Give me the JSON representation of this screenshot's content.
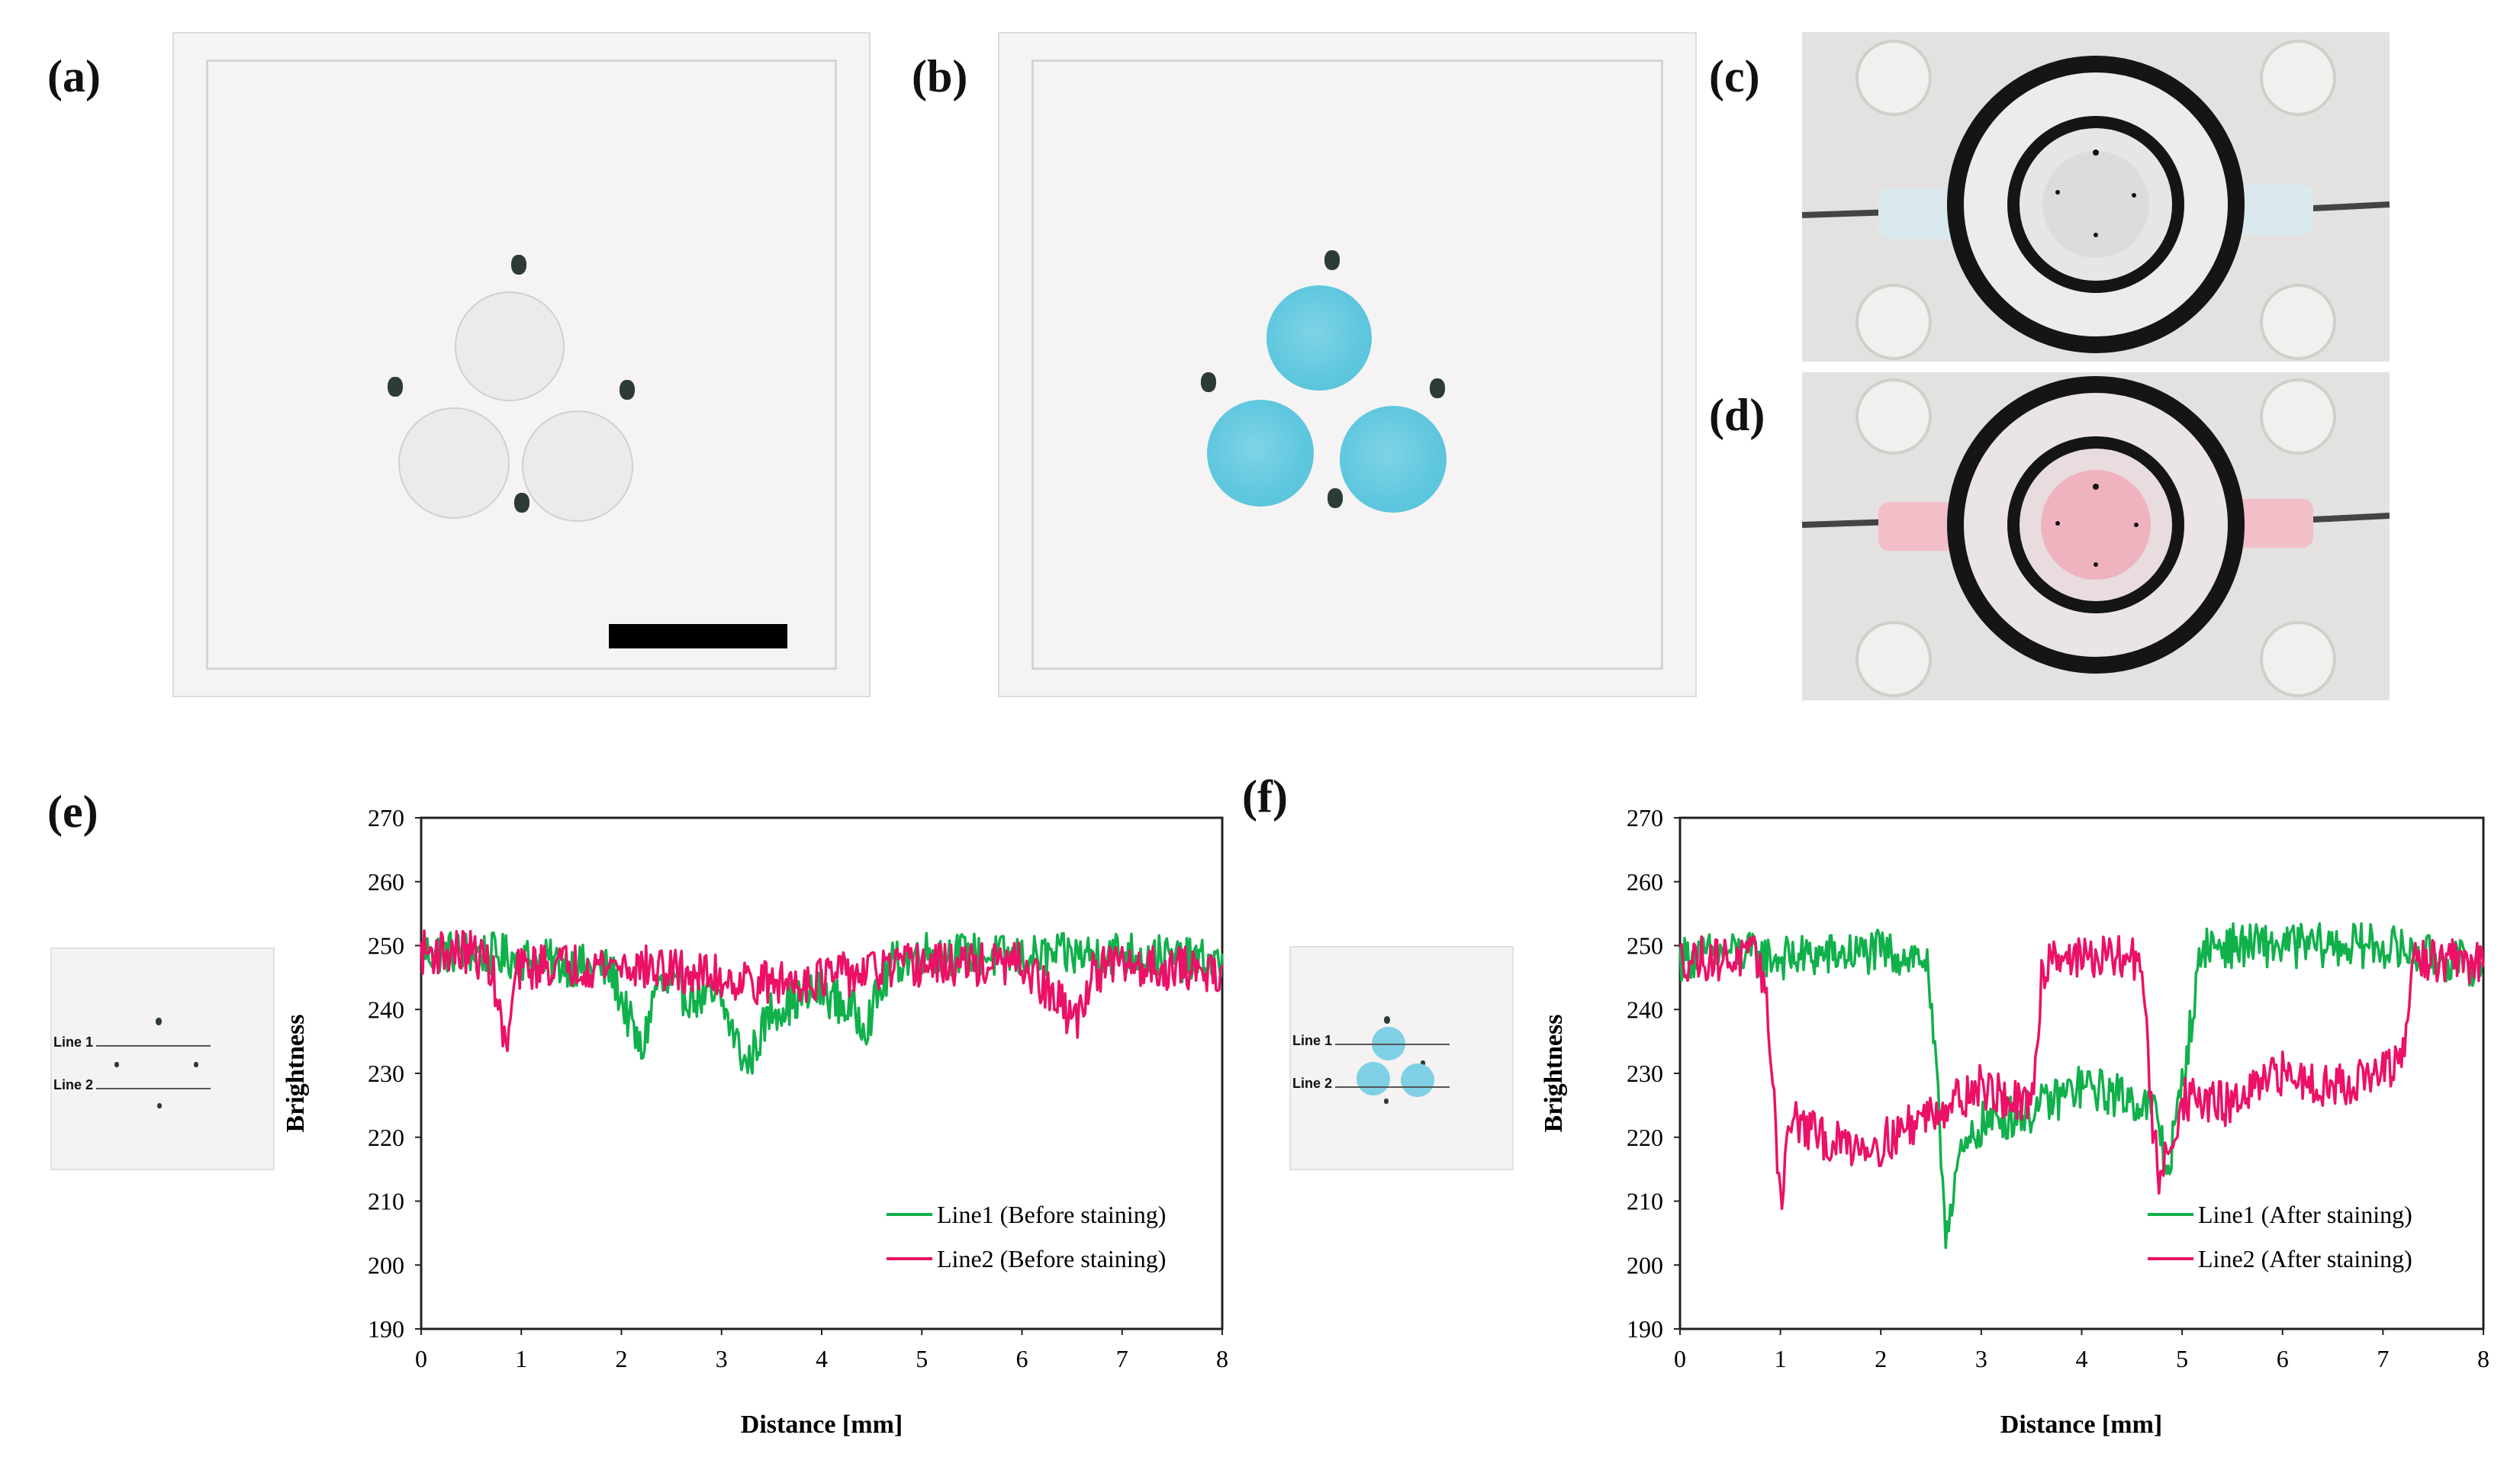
{
  "panels": {
    "a": {
      "label": "(a)"
    },
    "b": {
      "label": "(b)"
    },
    "c": {
      "label": "(c)"
    },
    "d": {
      "label": "(d)"
    },
    "e": {
      "label": "(e)"
    },
    "f": {
      "label": "(f)"
    }
  },
  "thumb_e": {
    "line1": "Line 1",
    "line2": "Line 2"
  },
  "thumb_f": {
    "line1": "Line 1",
    "line2": "Line 2"
  },
  "colors": {
    "line1": "#10b04b",
    "line2": "#ec1067",
    "stain": "#5ec7de",
    "pink": "#efb3bf"
  },
  "chart_data": [
    {
      "type": "line",
      "xlabel": "Distance [mm]",
      "ylabel": "Brightness",
      "xlim": [
        0,
        8
      ],
      "ylim": [
        190,
        270
      ],
      "xticks": [
        0,
        1,
        2,
        3,
        4,
        5,
        6,
        7,
        8
      ],
      "yticks": [
        190,
        200,
        210,
        220,
        230,
        240,
        250,
        260,
        270
      ],
      "legend_position": "bottom-right",
      "noise": 3.5,
      "series": [
        {
          "name": "Line1 (Before staining)",
          "color": "#10b04b",
          "x": [
            0,
            0.5,
            1.0,
            1.5,
            1.9,
            2.2,
            2.35,
            2.5,
            3.0,
            3.25,
            3.5,
            4.0,
            4.45,
            4.7,
            5.0,
            6.0,
            7.0,
            8.0
          ],
          "y": [
            249,
            249,
            248,
            247,
            246,
            233,
            244,
            243,
            241,
            231,
            240,
            243,
            238,
            247,
            249,
            248,
            249,
            247
          ]
        },
        {
          "name": "Line2 (Before staining)",
          "color": "#ec1067",
          "x": [
            0,
            0.5,
            0.7,
            0.85,
            0.95,
            1.2,
            2.0,
            3.0,
            3.5,
            4.0,
            4.5,
            5.0,
            6.0,
            6.55,
            6.7,
            7.0,
            8.0
          ],
          "y": [
            249,
            249,
            247,
            233,
            246,
            247,
            247,
            245,
            244,
            245,
            246,
            247,
            247,
            238,
            246,
            247,
            246
          ]
        }
      ]
    },
    {
      "type": "line",
      "xlabel": "Distance [mm]",
      "ylabel": "Brightness",
      "xlim": [
        0,
        8
      ],
      "ylim": [
        190,
        270
      ],
      "xticks": [
        0,
        1,
        2,
        3,
        4,
        5,
        6,
        7,
        8
      ],
      "yticks": [
        190,
        200,
        210,
        220,
        230,
        240,
        250,
        260,
        270
      ],
      "legend_position": "bottom-right",
      "noise": 3.5,
      "series": [
        {
          "name": "Line1 (After staining)",
          "color": "#10b04b",
          "x": [
            0,
            0.5,
            1.0,
            2.0,
            2.45,
            2.55,
            2.65,
            2.75,
            3.0,
            3.5,
            4.0,
            4.5,
            4.75,
            4.85,
            5.0,
            5.2,
            6.0,
            7.0,
            7.5,
            8.0
          ],
          "y": [
            248,
            249,
            248,
            249,
            248,
            230,
            205,
            215,
            222,
            224,
            228,
            226,
            224,
            214,
            228,
            250,
            250,
            250,
            248,
            247
          ]
        },
        {
          "name": "Line2 (After staining)",
          "color": "#ec1067",
          "x": [
            0,
            0.8,
            0.9,
            1.0,
            1.1,
            1.5,
            2.0,
            2.5,
            3.0,
            3.5,
            3.6,
            3.7,
            4.0,
            4.6,
            4.7,
            4.78,
            5.0,
            5.5,
            6.0,
            6.5,
            7.0,
            7.2,
            7.3,
            8.0
          ],
          "y": [
            248,
            248,
            235,
            210,
            223,
            219,
            219,
            224,
            228,
            224,
            245,
            249,
            248,
            248,
            222,
            213,
            226,
            225,
            230,
            228,
            230,
            232,
            248,
            247
          ]
        }
      ]
    }
  ]
}
